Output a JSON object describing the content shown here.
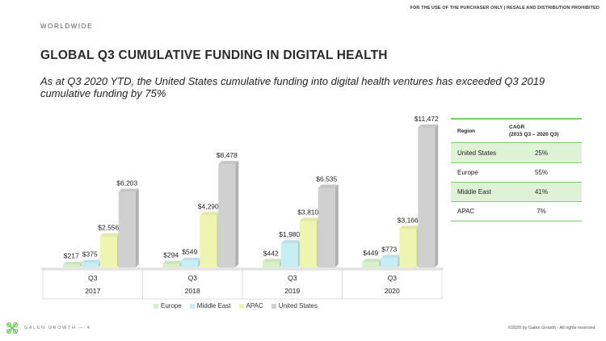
{
  "header": {
    "disclaimer": "FOR THE USE OF THE PURCHASER ONLY | RESALE AND DISTRIBUTION PROHIBITED",
    "eyebrow": "WORLDWIDE",
    "title": "GLOBAL Q3 CUMULATIVE FUNDING IN DIGITAL HEALTH",
    "subtitle": "As at Q3 2020 YTD, the United States cumulative funding into digital health ventures has exceeded Q3 2019 cumulative funding by 75%"
  },
  "colors": {
    "Europe": "#d7f0c8",
    "Middle East": "#c6eef4",
    "APAC": "#eef5b0",
    "United States": "#d0d0d0"
  },
  "chart_data": {
    "type": "bar",
    "categories": [
      "2017",
      "2018",
      "2019",
      "2020"
    ],
    "quarter_labels": [
      "Q3",
      "Q3",
      "Q3",
      "Q3"
    ],
    "series": [
      {
        "name": "Europe",
        "values": [
          217,
          294,
          442,
          449
        ],
        "labels": [
          "$217",
          "$294",
          "$442",
          "$449"
        ]
      },
      {
        "name": "Middle East",
        "values": [
          375,
          549,
          1980,
          773
        ],
        "labels": [
          "$375",
          "$549",
          "$1,980",
          "$773"
        ]
      },
      {
        "name": "APAC",
        "values": [
          2556,
          4290,
          3810,
          3166
        ],
        "labels": [
          "$2,556",
          "$4,290",
          "$3,810",
          "$3,166"
        ]
      },
      {
        "name": "United States",
        "values": [
          6203,
          8478,
          6535,
          11472
        ],
        "labels": [
          "$6,203",
          "$8,478",
          "$6,535",
          "$11,472"
        ]
      }
    ],
    "title": "",
    "xlabel": "",
    "ylabel": "",
    "ylim": [
      0,
      11472
    ],
    "legend_position": "bottom",
    "grid": false
  },
  "cagr_table": {
    "header_region": "Region",
    "header_cagr_line1": "CAGR",
    "header_cagr_line2": "(2015 Q3 – 2020 Q3)",
    "rows": [
      {
        "region": "United States",
        "cagr": "25%"
      },
      {
        "region": "Europe",
        "cagr": "55%"
      },
      {
        "region": "Middle East",
        "cagr": "41%"
      },
      {
        "region": "APAC",
        "cagr": "7%"
      }
    ]
  },
  "footer": {
    "brand": "GALEN GROWTH",
    "page": "— 4",
    "copyright": "©2020 by Galen Growth - All rights reserved."
  }
}
